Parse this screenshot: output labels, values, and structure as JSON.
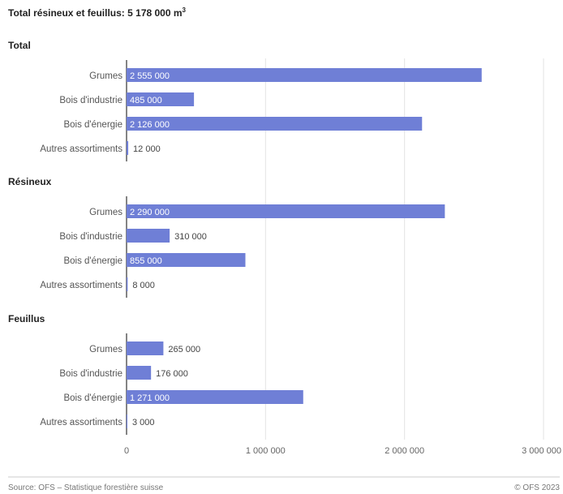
{
  "chart_data": {
    "type": "bar",
    "orientation": "horizontal",
    "title": "Total résineux et feuillus: 5 178 000 m",
    "title_superscript": "3",
    "xlim": [
      0,
      3000000
    ],
    "xticks": [
      0,
      1000000,
      2000000,
      3000000
    ],
    "xtick_labels": [
      "0",
      "1 000 000",
      "2 000 000",
      "3 000 000"
    ],
    "grid": true,
    "bar_color": "#6f7fd6",
    "categories": [
      "Grumes",
      "Bois d'industrie",
      "Bois d'énergie",
      "Autres assortiments"
    ],
    "groups": [
      {
        "name": "Total",
        "values": [
          2555000,
          485000,
          2126000,
          12000
        ],
        "labels": [
          "2 555 000",
          "485 000",
          "2 126 000",
          "12 000"
        ]
      },
      {
        "name": "Résineux",
        "values": [
          2290000,
          310000,
          855000,
          8000
        ],
        "labels": [
          "2 290 000",
          "310 000",
          "855 000",
          "8 000"
        ]
      },
      {
        "name": "Feuillus",
        "values": [
          265000,
          176000,
          1271000,
          3000
        ],
        "labels": [
          "265 000",
          "176 000",
          "1 271 000",
          "3 000"
        ]
      }
    ],
    "source": "Source: OFS – Statistique forestière suisse",
    "copyright": "© OFS 2023"
  }
}
